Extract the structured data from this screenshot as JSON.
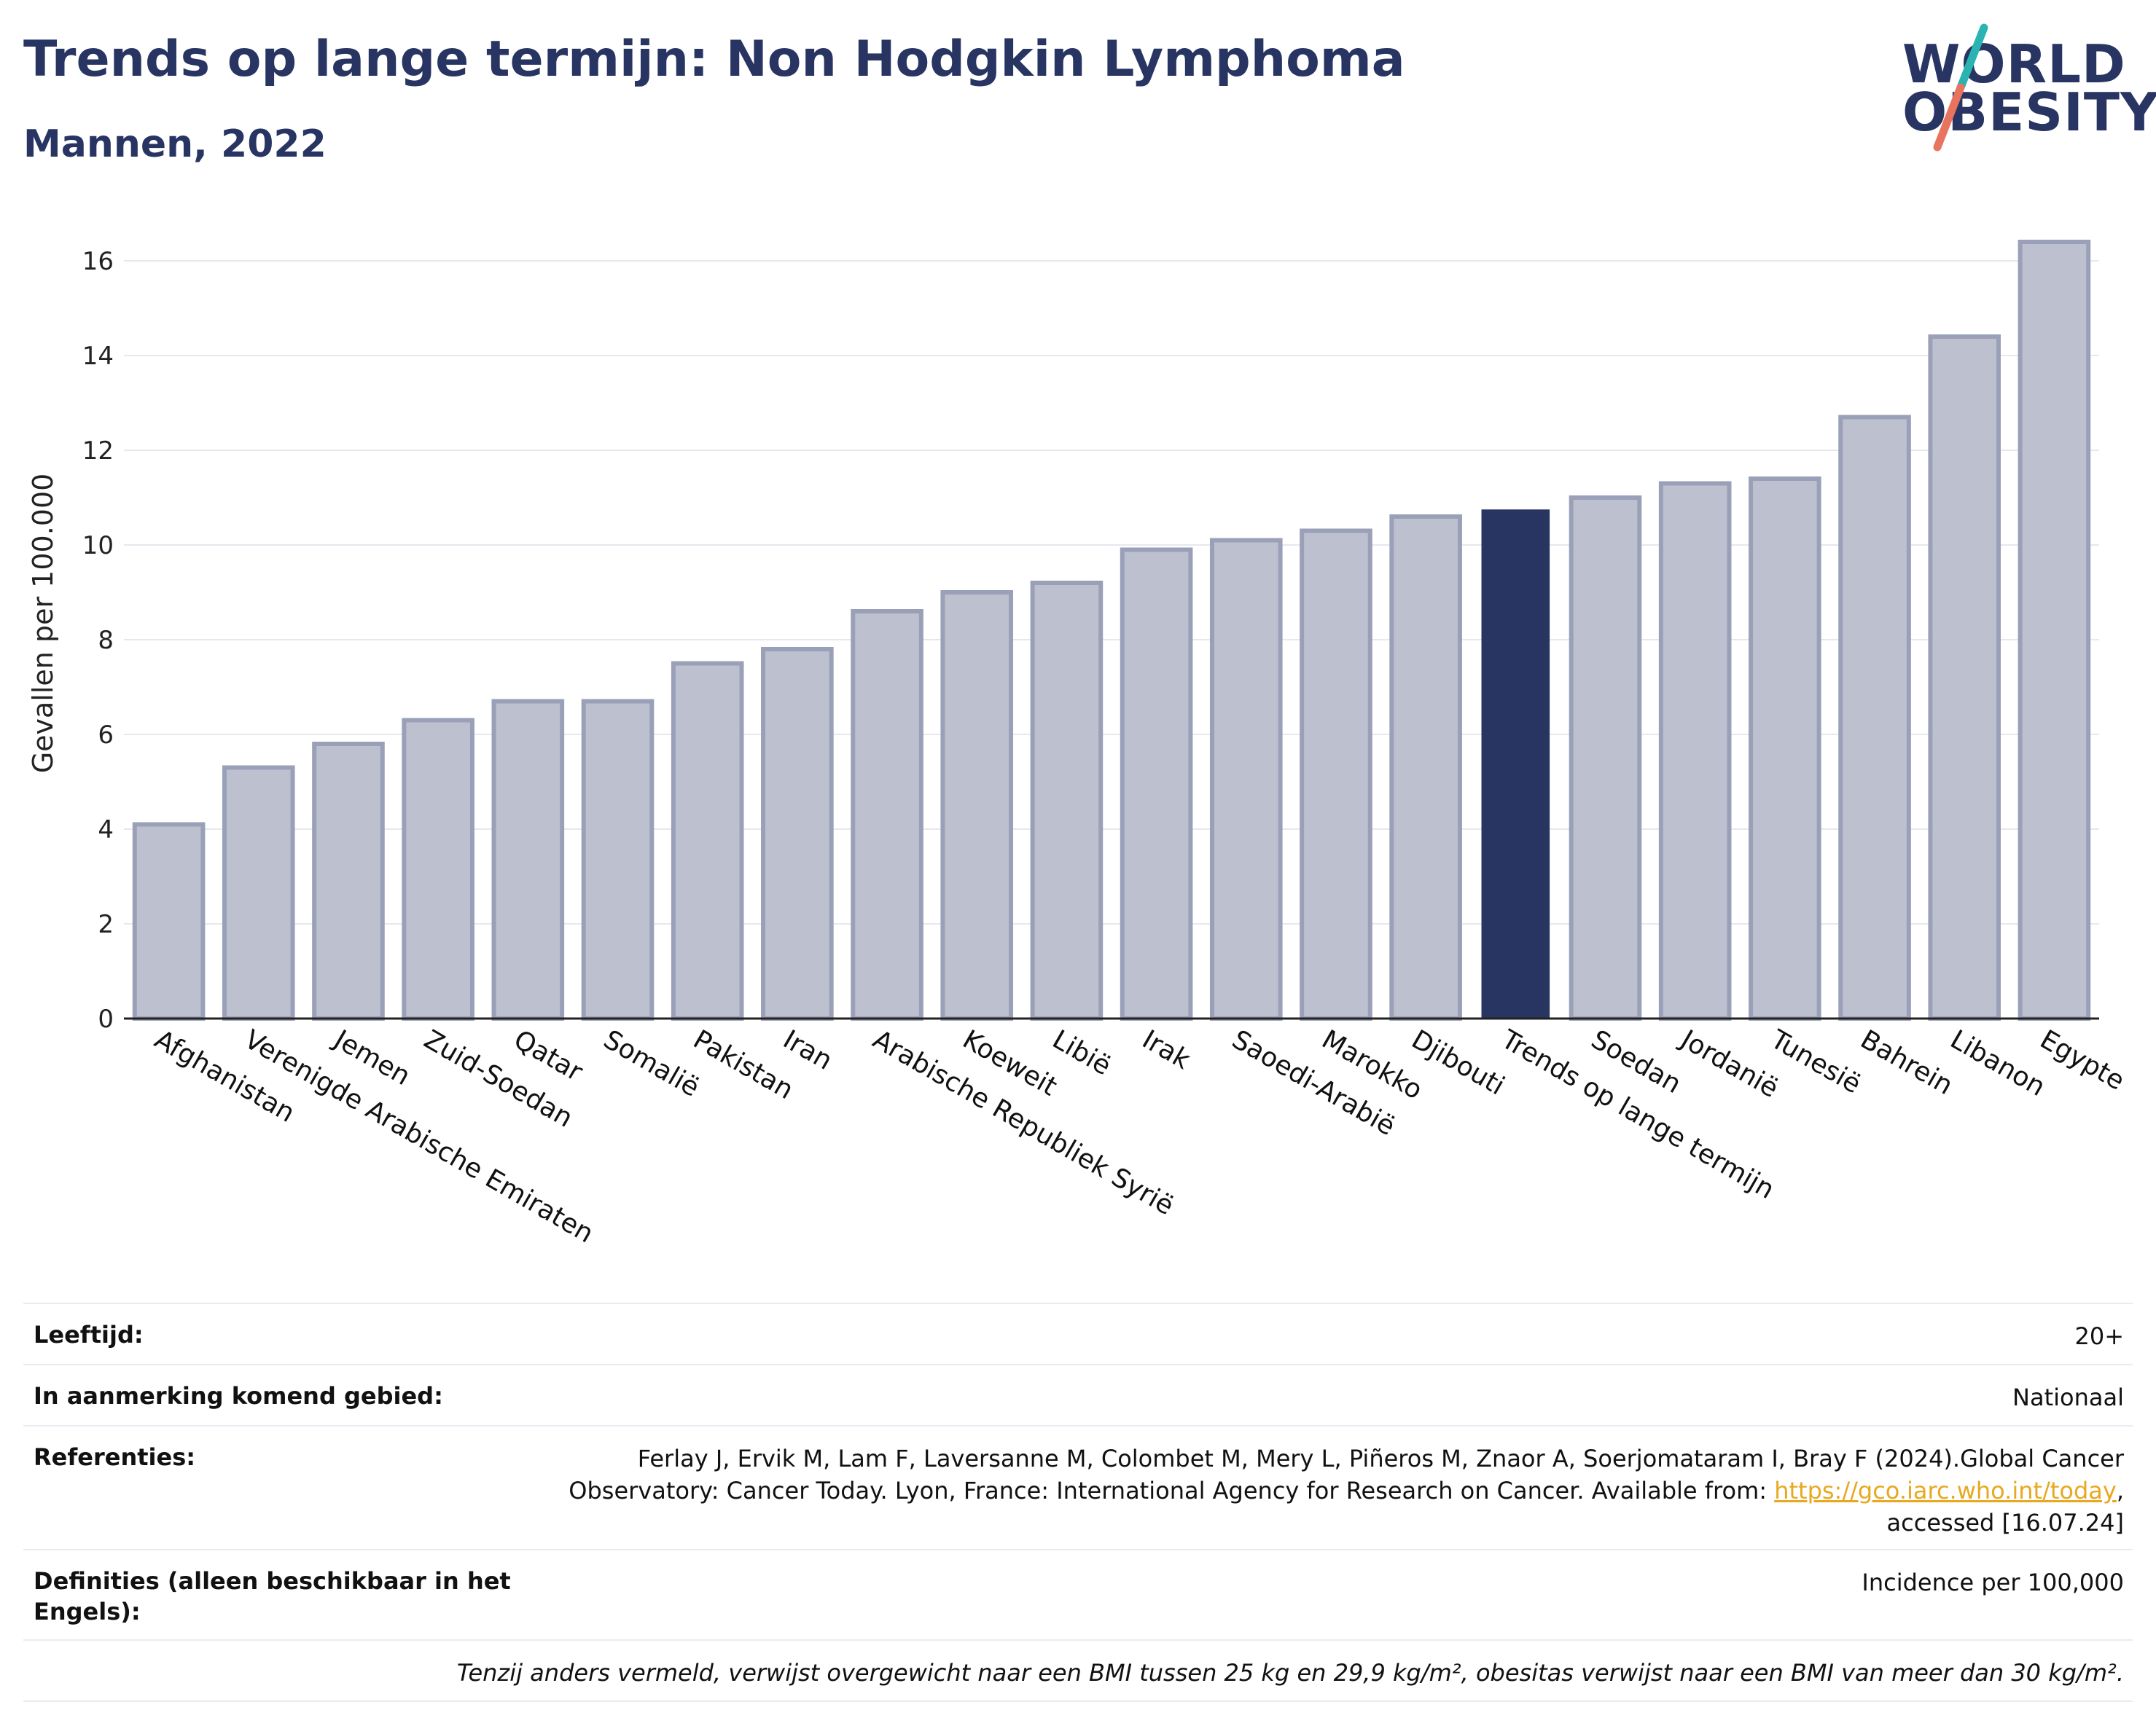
{
  "header": {
    "title": "Trends op lange termijn: Non Hodgkin Lymphoma",
    "subtitle": "Mannen, 2022"
  },
  "logo": {
    "line1": "WORLD",
    "line2": "OBESITY",
    "colors": {
      "text": "#283462",
      "slash_top": "#2bb3b1",
      "slash_bottom": "#e8735f"
    }
  },
  "colors": {
    "bar": "#283462",
    "bar_muted_fill": "#bcc0cf",
    "bar_muted_stroke": "#9aa0b8",
    "grid": "#e6e8ee",
    "axis": "#222222",
    "link": "#e8a81f"
  },
  "chart_data": {
    "type": "bar",
    "ylabel": "Gevallen per 100.000",
    "xlabel": "",
    "ylim": [
      0,
      17
    ],
    "yticks": [
      0,
      2,
      4,
      6,
      8,
      10,
      12,
      14,
      16
    ],
    "grid": true,
    "highlight": "Trends op lange termijn",
    "categories": [
      "Afghanistan",
      "Verenigde Arabische Emiraten",
      "Jemen",
      "Zuid-Soedan",
      "Qatar",
      "Somalië",
      "Pakistan",
      "Iran",
      "Arabische Republiek Syrië",
      "Koeweit",
      "Libië",
      "Irak",
      "Saoedi-Arabië",
      "Marokko",
      "Djibouti",
      "Trends op lange termijn",
      "Soedan",
      "Jordanië",
      "Tunesië",
      "Bahrein",
      "Libanon",
      "Egypte"
    ],
    "values": [
      4.1,
      5.3,
      5.8,
      6.3,
      6.7,
      6.7,
      7.5,
      7.8,
      8.6,
      9.0,
      9.2,
      9.9,
      10.1,
      10.3,
      10.6,
      10.75,
      11.0,
      11.3,
      11.4,
      12.7,
      14.4,
      16.4
    ]
  },
  "info": {
    "age_label": "Leeftijd:",
    "age_value": "20+",
    "region_label": "In aanmerking komend gebied:",
    "region_value": "Nationaal",
    "ref_label": "Referenties:",
    "ref_text_1": "Ferlay J, Ervik M, Lam F, Laversanne M, Colombet M, Mery L, Piñeros M, Znaor A, Soerjomataram I, Bray F (2024).Global Cancer",
    "ref_text_2": "Observatory: Cancer Today. Lyon, France: International Agency for Research on Cancer. Available from: ",
    "ref_link": "https://gco.iarc.who.int/today",
    "ref_text_3": ",",
    "ref_text_4": "accessed [16.07.24]",
    "def_label": "Definities (alleen beschikbaar in het Engels):",
    "def_value": "Incidence per 100,000",
    "note": "Tenzij anders vermeld, verwijst overgewicht naar een BMI tussen 25 kg en 29,9 kg/m², obesitas verwijst naar een BMI van meer dan 30 kg/m²."
  }
}
